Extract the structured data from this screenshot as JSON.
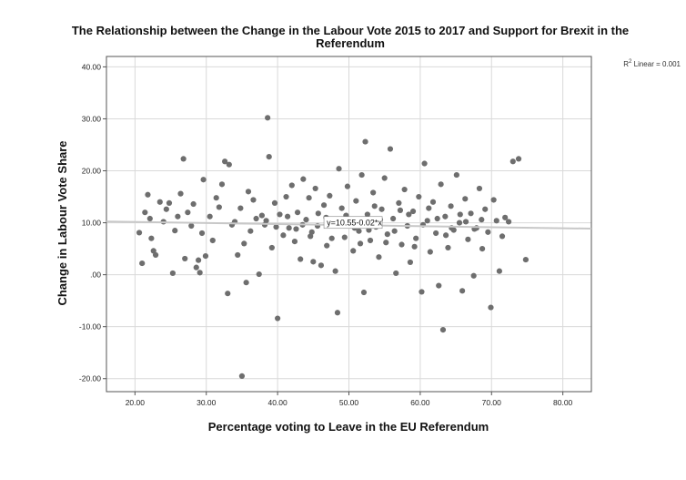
{
  "chart_data": {
    "type": "scatter",
    "title": "The Relationship between the Change in the Labour Vote 2015 to 2017 and Support for Brexit in the Referendum",
    "title_lines": [
      "The Relationship between the Change in the Labour Vote 2015 to 2017 and Support for Brexit in the",
      "Referendum"
    ],
    "xlabel": "Percentage voting to Leave in the EU Referendum",
    "ylabel": "Change in Labour Vote Share",
    "xlim": [
      16,
      84
    ],
    "ylim": [
      -22.5,
      42
    ],
    "x_ticks": [
      20,
      30,
      40,
      50,
      60,
      70,
      80
    ],
    "x_tick_labels": [
      "20.00",
      "30.00",
      "40.00",
      "50.00",
      "60.00",
      "70.00",
      "80.00"
    ],
    "y_ticks": [
      -20,
      -10,
      0,
      10,
      20,
      30,
      40
    ],
    "y_tick_labels": [
      "-20.00",
      "-10.00",
      ".00",
      "10.00",
      "20.00",
      "30.00",
      "40.00"
    ],
    "grid": true,
    "fit_line": {
      "intercept": 10.55,
      "slope": -0.02,
      "equation_label": "y=10.55-0.02*x"
    },
    "r_squared_label": {
      "prefix": "R",
      "superscript": "2",
      "suffix": " Linear = 0.001"
    },
    "colors": {
      "points": "#6e6e6e",
      "grid": "#d9d9d9",
      "axis": "#555555",
      "fit_line": "#c8c8c8"
    },
    "points": [
      [
        20.6,
        8.1
      ],
      [
        21.0,
        2.2
      ],
      [
        21.4,
        12.0
      ],
      [
        21.8,
        15.4
      ],
      [
        22.1,
        10.8
      ],
      [
        22.3,
        7.0
      ],
      [
        22.6,
        4.6
      ],
      [
        22.9,
        3.8
      ],
      [
        23.5,
        14.0
      ],
      [
        24.0,
        10.2
      ],
      [
        24.4,
        12.6
      ],
      [
        24.8,
        13.8
      ],
      [
        25.3,
        0.3
      ],
      [
        25.6,
        8.5
      ],
      [
        26.0,
        11.2
      ],
      [
        26.4,
        15.6
      ],
      [
        26.8,
        22.3
      ],
      [
        27.0,
        3.1
      ],
      [
        27.4,
        12.0
      ],
      [
        27.9,
        9.4
      ],
      [
        28.2,
        13.6
      ],
      [
        28.6,
        1.4
      ],
      [
        28.9,
        2.8
      ],
      [
        29.1,
        0.4
      ],
      [
        29.4,
        8.0
      ],
      [
        29.6,
        18.3
      ],
      [
        29.9,
        3.6
      ],
      [
        30.5,
        11.2
      ],
      [
        30.9,
        6.6
      ],
      [
        31.4,
        14.8
      ],
      [
        31.8,
        13.0
      ],
      [
        32.2,
        17.4
      ],
      [
        32.6,
        21.8
      ],
      [
        33.0,
        -3.6
      ],
      [
        33.2,
        21.2
      ],
      [
        33.6,
        9.6
      ],
      [
        34.0,
        10.2
      ],
      [
        34.4,
        3.8
      ],
      [
        34.8,
        12.8
      ],
      [
        35.0,
        -19.5
      ],
      [
        35.3,
        6.0
      ],
      [
        35.6,
        -1.5
      ],
      [
        35.9,
        16.0
      ],
      [
        36.2,
        8.4
      ],
      [
        36.6,
        14.4
      ],
      [
        37.0,
        10.8
      ],
      [
        37.4,
        0.1
      ],
      [
        37.8,
        11.4
      ],
      [
        38.2,
        9.6
      ],
      [
        38.6,
        30.2
      ],
      [
        38.8,
        22.7
      ],
      [
        39.2,
        5.2
      ],
      [
        39.6,
        13.8
      ],
      [
        40.0,
        -8.4
      ],
      [
        40.3,
        11.6
      ],
      [
        40.8,
        7.6
      ],
      [
        41.2,
        15.0
      ],
      [
        41.6,
        9.0
      ],
      [
        42.0,
        17.2
      ],
      [
        42.4,
        6.4
      ],
      [
        42.8,
        12.0
      ],
      [
        43.2,
        3.0
      ],
      [
        43.6,
        18.4
      ],
      [
        44.0,
        10.6
      ],
      [
        44.4,
        14.8
      ],
      [
        44.8,
        8.2
      ],
      [
        45.0,
        2.5
      ],
      [
        45.3,
        16.6
      ],
      [
        45.7,
        11.8
      ],
      [
        46.1,
        1.8
      ],
      [
        46.5,
        13.4
      ],
      [
        46.9,
        5.6
      ],
      [
        47.3,
        15.2
      ],
      [
        47.7,
        9.8
      ],
      [
        48.1,
        0.7
      ],
      [
        48.4,
        -7.3
      ],
      [
        48.6,
        20.4
      ],
      [
        49.0,
        12.8
      ],
      [
        49.4,
        7.2
      ],
      [
        49.8,
        17.0
      ],
      [
        50.2,
        10.0
      ],
      [
        50.6,
        4.6
      ],
      [
        51.0,
        14.2
      ],
      [
        51.4,
        8.4
      ],
      [
        51.8,
        19.2
      ],
      [
        52.1,
        -3.4
      ],
      [
        52.3,
        25.6
      ],
      [
        52.6,
        11.6
      ],
      [
        53.0,
        6.6
      ],
      [
        53.4,
        15.8
      ],
      [
        53.8,
        9.2
      ],
      [
        54.2,
        3.4
      ],
      [
        54.6,
        12.6
      ],
      [
        55.0,
        18.6
      ],
      [
        55.4,
        7.8
      ],
      [
        55.8,
        24.2
      ],
      [
        56.2,
        10.8
      ],
      [
        56.6,
        0.3
      ],
      [
        57.0,
        13.8
      ],
      [
        57.4,
        5.8
      ],
      [
        57.8,
        16.4
      ],
      [
        58.2,
        9.4
      ],
      [
        58.6,
        2.4
      ],
      [
        59.0,
        12.2
      ],
      [
        59.4,
        7.0
      ],
      [
        59.8,
        15.0
      ],
      [
        60.2,
        -3.3
      ],
      [
        60.6,
        21.4
      ],
      [
        61.0,
        10.4
      ],
      [
        61.4,
        4.4
      ],
      [
        61.8,
        14.0
      ],
      [
        62.2,
        8.0
      ],
      [
        62.6,
        -2.1
      ],
      [
        62.9,
        17.4
      ],
      [
        63.2,
        -10.6
      ],
      [
        63.5,
        11.2
      ],
      [
        63.9,
        5.2
      ],
      [
        64.3,
        13.2
      ],
      [
        64.7,
        8.6
      ],
      [
        65.1,
        19.2
      ],
      [
        65.5,
        10.0
      ],
      [
        65.9,
        -3.1
      ],
      [
        66.3,
        14.6
      ],
      [
        66.7,
        6.8
      ],
      [
        67.1,
        11.8
      ],
      [
        67.5,
        -0.2
      ],
      [
        67.9,
        9.0
      ],
      [
        68.3,
        16.6
      ],
      [
        68.7,
        5.0
      ],
      [
        69.1,
        12.6
      ],
      [
        69.5,
        8.2
      ],
      [
        69.9,
        -6.3
      ],
      [
        70.3,
        14.4
      ],
      [
        70.7,
        10.4
      ],
      [
        71.1,
        0.7
      ],
      [
        71.5,
        7.4
      ],
      [
        71.9,
        11.0
      ],
      [
        72.4,
        10.2
      ],
      [
        73.0,
        21.8
      ],
      [
        73.8,
        22.3
      ],
      [
        74.8,
        2.9
      ],
      [
        43.5,
        9.6
      ],
      [
        44.6,
        7.4
      ],
      [
        46.8,
        11.0
      ],
      [
        50.8,
        9.0
      ],
      [
        52.8,
        8.6
      ],
      [
        54.4,
        10.6
      ],
      [
        56.4,
        8.4
      ],
      [
        58.4,
        11.6
      ],
      [
        60.4,
        9.6
      ],
      [
        62.4,
        10.8
      ],
      [
        64.4,
        9.0
      ],
      [
        66.4,
        10.2
      ],
      [
        38.4,
        10.4
      ],
      [
        39.8,
        9.2
      ],
      [
        41.4,
        11.2
      ],
      [
        55.2,
        6.2
      ],
      [
        57.2,
        12.4
      ],
      [
        59.2,
        5.4
      ],
      [
        61.2,
        12.8
      ],
      [
        53.6,
        13.2
      ],
      [
        51.6,
        6.0
      ],
      [
        49.6,
        11.4
      ],
      [
        47.6,
        7.0
      ],
      [
        45.6,
        9.4
      ],
      [
        42.6,
        8.8
      ],
      [
        63.6,
        7.6
      ],
      [
        65.6,
        11.6
      ],
      [
        67.6,
        8.8
      ],
      [
        68.6,
        10.6
      ]
    ]
  }
}
